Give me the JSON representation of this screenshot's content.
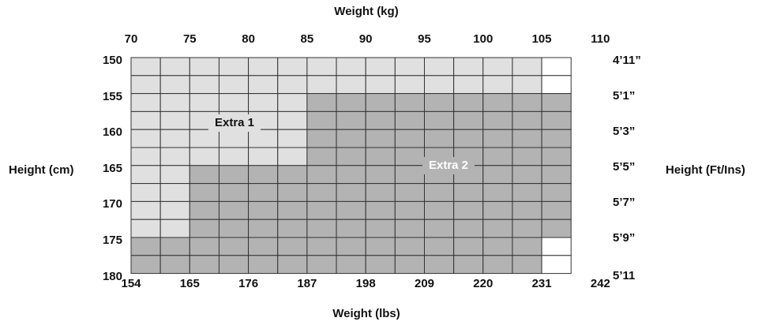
{
  "axis_titles": {
    "top": "Weight (kg)",
    "bottom": "Weight (lbs)",
    "left": "Height (cm)",
    "right": "Height (Ft/Ins)"
  },
  "top_ticks": [
    "70",
    "75",
    "80",
    "85",
    "90",
    "95",
    "100",
    "105",
    "110"
  ],
  "bottom_ticks": [
    "154",
    "165",
    "176",
    "187",
    "198",
    "209",
    "220",
    "231",
    "242"
  ],
  "left_ticks": [
    "150",
    "155",
    "160",
    "165",
    "170",
    "175",
    "180"
  ],
  "right_ticks": [
    "4’11”",
    "5’1”",
    "5’3”",
    "5’5”",
    "5’7”",
    "5’9”",
    "5’11"
  ],
  "zones": {
    "extra1": {
      "label": "Extra 1",
      "color": "#e0e0e0"
    },
    "extra2": {
      "label": "Extra 2",
      "color": "#b3b3b3"
    },
    "none": {
      "color": "#ffffff"
    }
  },
  "grid_matrix": [
    "111111111111110",
    "111111111111110",
    "111111222222222",
    "111111222222222",
    "111111222222222",
    "111111222222222",
    "112222222222222",
    "112222222222222",
    "112222222222222",
    "112222222222222",
    "222222222222220",
    "222222222222220"
  ]
}
